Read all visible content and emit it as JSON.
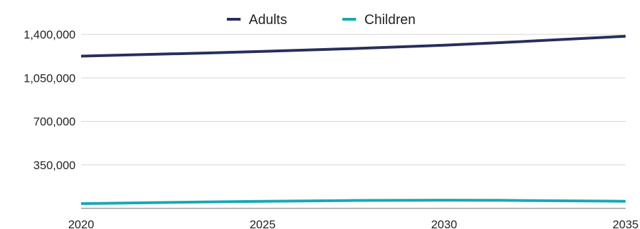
{
  "chart_data": {
    "type": "line",
    "x": [
      2020,
      2025,
      2030,
      2035
    ],
    "x_tick_labels": [
      "2020",
      "2025",
      "2030",
      "2035"
    ],
    "y_tick_values": [
      350000,
      700000,
      1050000,
      1400000
    ],
    "y_tick_labels": [
      "350,000",
      "700,000",
      "1,050,000",
      "1,400,000"
    ],
    "ylim": [
      0,
      1400000
    ],
    "grid": true,
    "legend_position": "top-center",
    "series": [
      {
        "name": "Adults",
        "color": "#262f5c",
        "values": [
          1225000,
          1263000,
          1313000,
          1385000
        ]
      },
      {
        "name": "Children",
        "color": "#17a8b3",
        "values": [
          38000,
          57000,
          66000,
          57000
        ]
      }
    ]
  }
}
